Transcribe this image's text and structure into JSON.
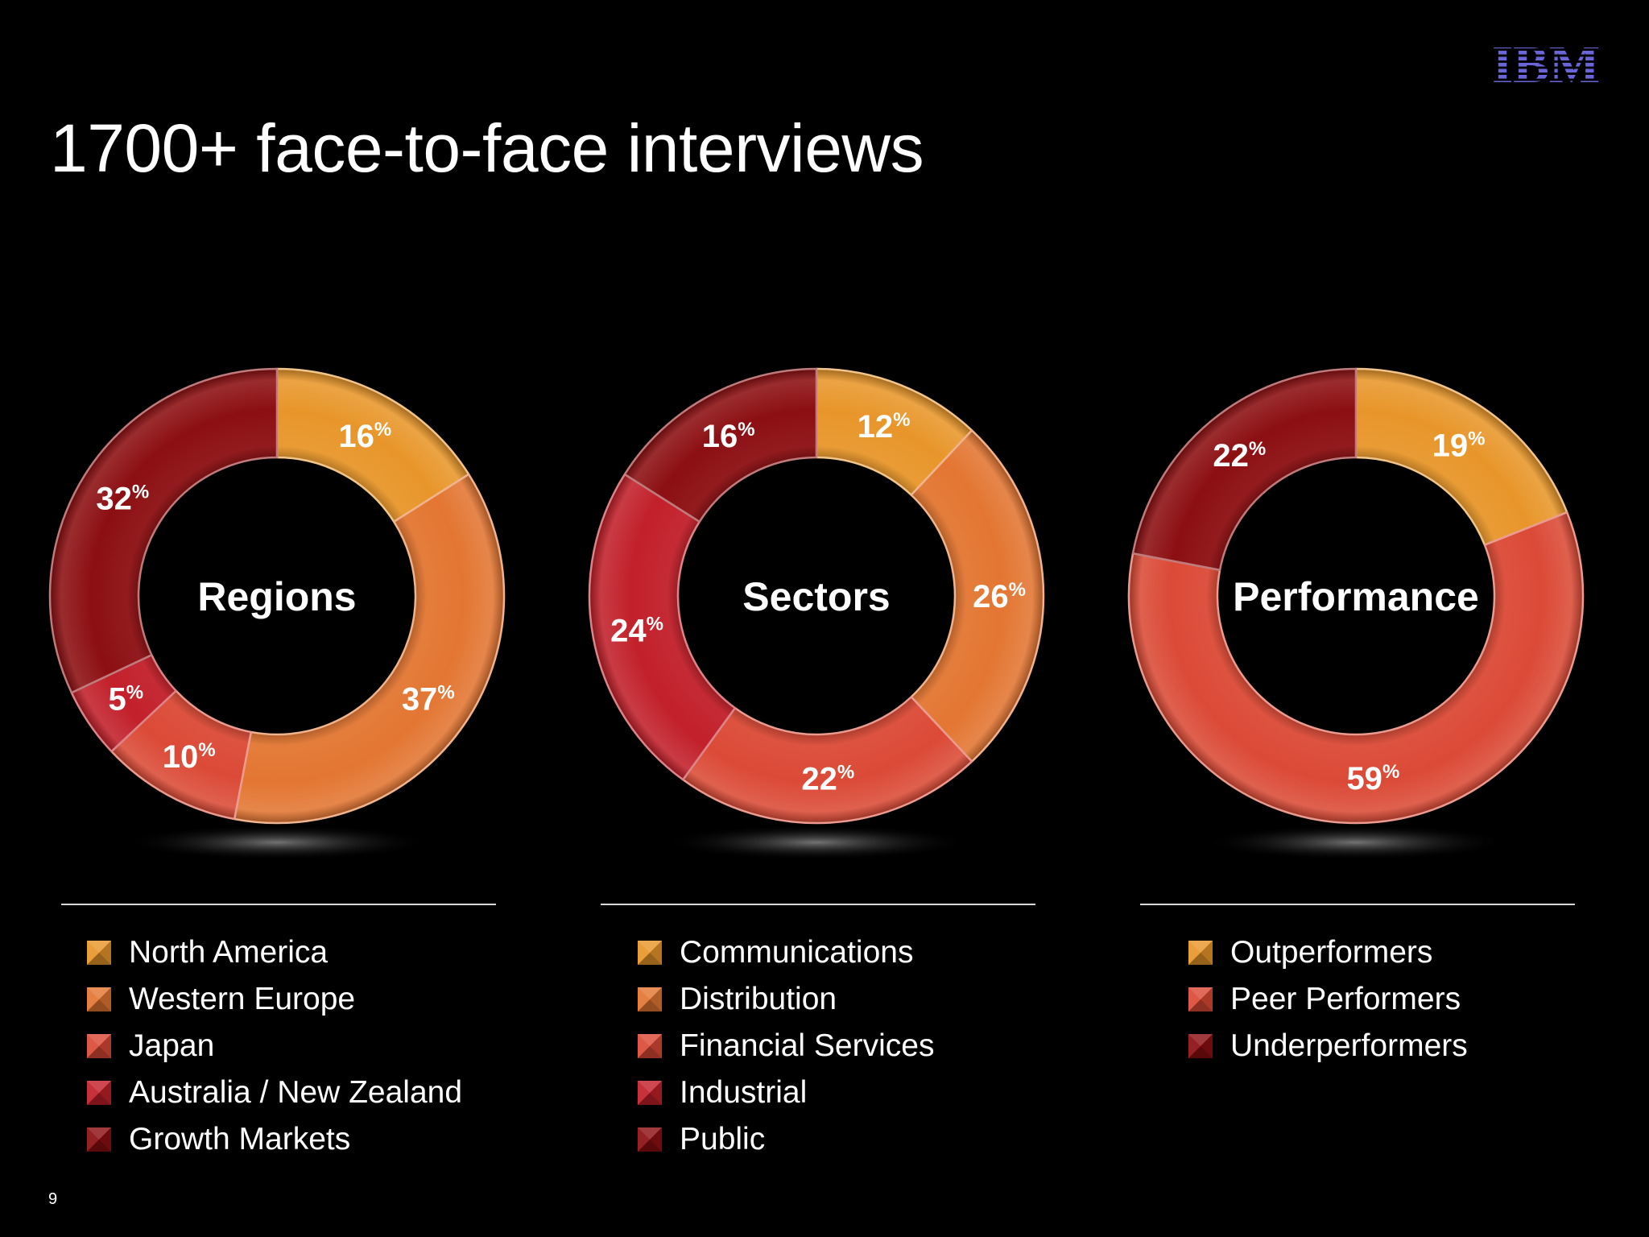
{
  "title": "1700+ face-to-face interviews",
  "logo": "IBM",
  "page_number": "9",
  "colors": {
    "background": "#000000",
    "slice_palette": [
      "#E8962A",
      "#E37632",
      "#DB4A36",
      "#C2202A",
      "#8C0F12"
    ]
  },
  "chart_data": [
    {
      "type": "pie",
      "center_label": "Regions",
      "categories": [
        "North America",
        "Western Europe",
        "Japan",
        "Australia / New Zealand",
        "Growth Markets"
      ],
      "values": [
        16,
        37,
        10,
        5,
        32
      ],
      "unit": "%",
      "colors": [
        "#E8962A",
        "#E37632",
        "#DB4A36",
        "#C2202A",
        "#8C0F12"
      ]
    },
    {
      "type": "pie",
      "center_label": "Sectors",
      "categories": [
        "Communications",
        "Distribution",
        "Financial Services",
        "Industrial",
        "Public"
      ],
      "values": [
        12,
        26,
        22,
        24,
        16
      ],
      "unit": "%",
      "colors": [
        "#E8962A",
        "#E37632",
        "#DB4A36",
        "#C2202A",
        "#8C0F12"
      ]
    },
    {
      "type": "pie",
      "center_label": "Performance",
      "categories": [
        "Outperformers",
        "Peer Performers",
        "Underperformers"
      ],
      "values": [
        19,
        59,
        22
      ],
      "unit": "%",
      "colors": [
        "#E8962A",
        "#DB4A36",
        "#8C0F12"
      ]
    }
  ]
}
